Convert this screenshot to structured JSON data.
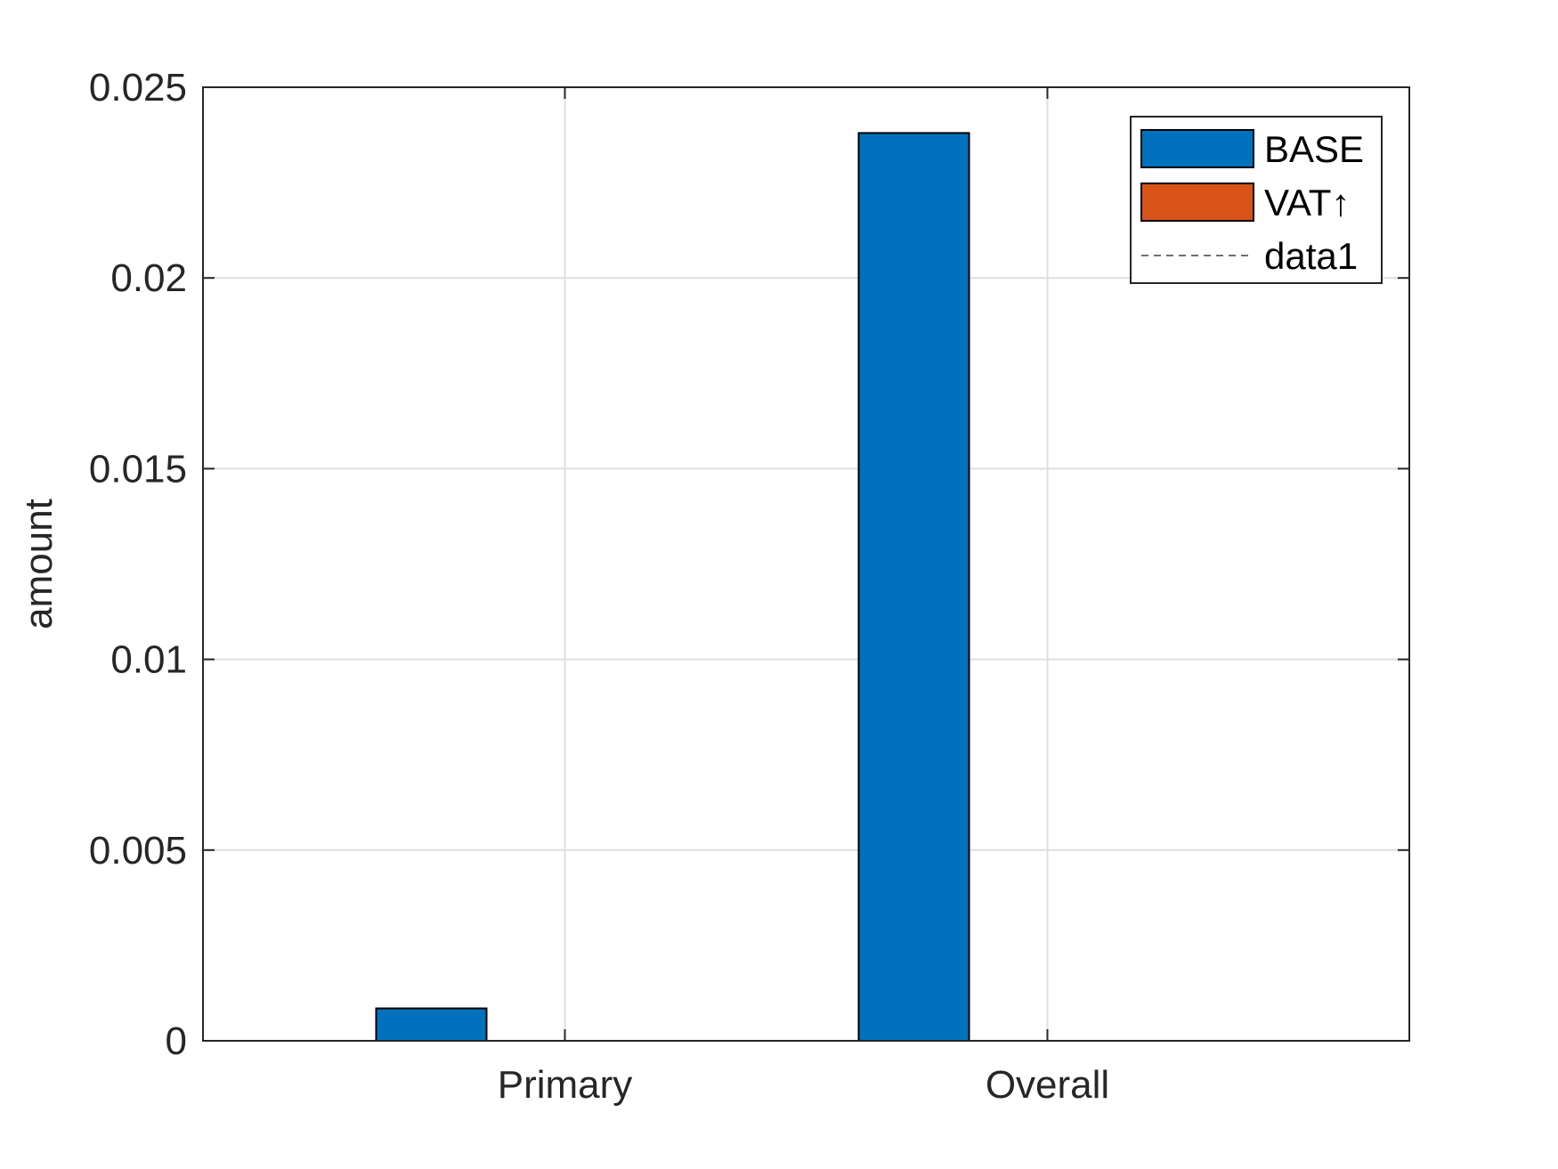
{
  "chart_data": {
    "type": "bar",
    "title": "",
    "xlabel": "",
    "ylabel": "amount",
    "categories": [
      "Primary",
      "Overall"
    ],
    "series": [
      {
        "name": "BASE",
        "color": "#0072BD",
        "values": [
          0.00085,
          0.0238
        ]
      },
      {
        "name": "VAT↑",
        "color": "#D95319",
        "values": [
          0,
          0
        ]
      }
    ],
    "reference_line": {
      "name": "data1",
      "style": "dashed",
      "value": 0
    },
    "ylim": [
      0,
      0.025
    ],
    "yticks": [
      0,
      0.005,
      0.01,
      0.015,
      0.02,
      0.025
    ],
    "ytick_labels": [
      "0",
      "0.005",
      "0.01",
      "0.015",
      "0.02",
      "0.025"
    ],
    "grid": true,
    "legend": {
      "position": "top-right",
      "entries": [
        "BASE",
        "VAT↑",
        "data1"
      ]
    }
  }
}
